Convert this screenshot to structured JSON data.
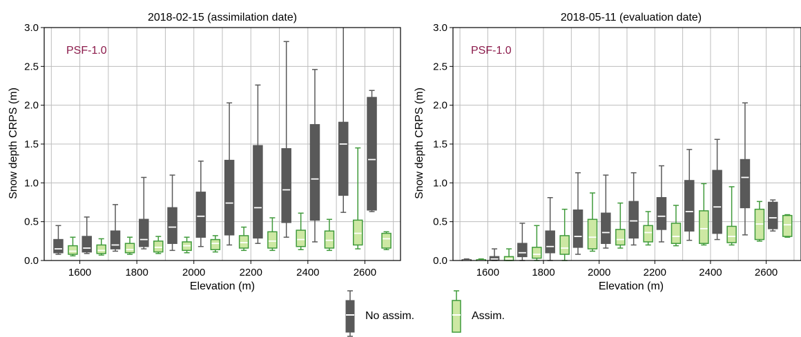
{
  "colors": {
    "no_assim_fill": "#595959",
    "no_assim_edge": "#595959",
    "no_assim_median": "#ffffff",
    "assim_fill": "#cde8a3",
    "assim_edge": "#3f9a3a",
    "assim_median": "#ffffff",
    "annotation": "#8b1a4a",
    "grid": "#bdbdbd",
    "axis": "#000000"
  },
  "legend": {
    "no_assim_label": "No assim.",
    "assim_label": "Assim."
  },
  "chart_data": [
    {
      "type": "box",
      "title": "2018-02-15 (assimilation date)",
      "annotation": "PSF-1.0",
      "xlabel": "Elevation (m)",
      "ylabel": "Snow depth CRPS (m)",
      "ylim": [
        0,
        3.0
      ],
      "xlim": [
        1475,
        2725
      ],
      "xticks": [
        1600,
        1800,
        2000,
        2200,
        2400,
        2600
      ],
      "xtick_labels": [
        "1600",
        "1800",
        "2000",
        "2200",
        "2400",
        "2600"
      ],
      "yticks": [
        0.0,
        0.5,
        1.0,
        1.5,
        2.0,
        2.5,
        3.0
      ],
      "ytick_labels": [
        "0.0",
        "0.5",
        "1.0",
        "1.5",
        "2.0",
        "2.5",
        "3.0"
      ],
      "grid": true,
      "categories": [
        1550,
        1650,
        1750,
        1850,
        1950,
        2050,
        2150,
        2250,
        2350,
        2450,
        2550,
        2650
      ],
      "series": [
        {
          "name": "No assim.",
          "boxes": [
            {
              "whislo": 0.08,
              "q1": 0.1,
              "med": 0.15,
              "q3": 0.27,
              "whishi": 0.45
            },
            {
              "whislo": 0.09,
              "q1": 0.11,
              "med": 0.16,
              "q3": 0.31,
              "whishi": 0.56
            },
            {
              "whislo": 0.12,
              "q1": 0.15,
              "med": 0.2,
              "q3": 0.38,
              "whishi": 0.72
            },
            {
              "whislo": 0.15,
              "q1": 0.18,
              "med": 0.27,
              "q3": 0.53,
              "whishi": 1.07
            },
            {
              "whislo": 0.13,
              "q1": 0.22,
              "med": 0.43,
              "q3": 0.68,
              "whishi": 1.1
            },
            {
              "whislo": 0.18,
              "q1": 0.3,
              "med": 0.57,
              "q3": 0.88,
              "whishi": 1.28
            },
            {
              "whislo": 0.2,
              "q1": 0.33,
              "med": 0.74,
              "q3": 1.29,
              "whishi": 2.03
            },
            {
              "whislo": 0.22,
              "q1": 0.29,
              "med": 0.68,
              "q3": 1.48,
              "whishi": 2.26
            },
            {
              "whislo": 0.3,
              "q1": 0.49,
              "med": 0.91,
              "q3": 1.44,
              "whishi": 2.82
            },
            {
              "whislo": 0.24,
              "q1": 0.52,
              "med": 1.05,
              "q3": 1.75,
              "whishi": 2.46
            },
            {
              "whislo": 0.62,
              "q1": 0.84,
              "med": 1.5,
              "q3": 1.78,
              "whishi": 3.05
            },
            {
              "whislo": 0.63,
              "q1": 0.65,
              "med": 1.3,
              "q3": 2.1,
              "whishi": 2.19
            }
          ]
        },
        {
          "name": "Assim.",
          "boxes": [
            {
              "whislo": 0.06,
              "q1": 0.08,
              "med": 0.12,
              "q3": 0.19,
              "whishi": 0.3
            },
            {
              "whislo": 0.07,
              "q1": 0.09,
              "med": 0.13,
              "q3": 0.2,
              "whishi": 0.28
            },
            {
              "whislo": 0.08,
              "q1": 0.1,
              "med": 0.14,
              "q3": 0.22,
              "whishi": 0.3
            },
            {
              "whislo": 0.09,
              "q1": 0.11,
              "med": 0.17,
              "q3": 0.25,
              "whishi": 0.31
            },
            {
              "whislo": 0.1,
              "q1": 0.13,
              "med": 0.19,
              "q3": 0.24,
              "whishi": 0.3
            },
            {
              "whislo": 0.11,
              "q1": 0.14,
              "med": 0.22,
              "q3": 0.27,
              "whishi": 0.32
            },
            {
              "whislo": 0.13,
              "q1": 0.16,
              "med": 0.23,
              "q3": 0.32,
              "whishi": 0.43
            },
            {
              "whislo": 0.13,
              "q1": 0.16,
              "med": 0.25,
              "q3": 0.37,
              "whishi": 0.55
            },
            {
              "whislo": 0.14,
              "q1": 0.18,
              "med": 0.27,
              "q3": 0.39,
              "whishi": 0.61
            },
            {
              "whislo": 0.13,
              "q1": 0.16,
              "med": 0.26,
              "q3": 0.38,
              "whishi": 0.53
            },
            {
              "whislo": 0.15,
              "q1": 0.2,
              "med": 0.35,
              "q3": 0.52,
              "whishi": 1.45
            },
            {
              "whislo": 0.14,
              "q1": 0.16,
              "med": 0.28,
              "q3": 0.35,
              "whishi": 0.37
            }
          ]
        }
      ]
    },
    {
      "type": "box",
      "title": "2018-05-11 (evaluation date)",
      "annotation": "PSF-1.0",
      "xlabel": "Elevation (m)",
      "ylabel": "Snow depth CRPS (m)",
      "ylim": [
        0,
        3.0
      ],
      "xlim": [
        1475,
        2725
      ],
      "xticks": [
        1600,
        1800,
        2000,
        2200,
        2400,
        2600
      ],
      "xtick_labels": [
        "1600",
        "1800",
        "2000",
        "2200",
        "2400",
        "2600"
      ],
      "yticks": [
        0.0,
        0.5,
        1.0,
        1.5,
        2.0,
        2.5,
        3.0
      ],
      "ytick_labels": [
        "0.0",
        "0.5",
        "1.0",
        "1.5",
        "2.0",
        "2.5",
        "3.0"
      ],
      "grid": true,
      "categories": [
        1550,
        1650,
        1750,
        1850,
        1950,
        2050,
        2150,
        2250,
        2350,
        2450,
        2550,
        2650
      ],
      "series": [
        {
          "name": "No assim.",
          "boxes": [
            {
              "whislo": 0.0,
              "q1": 0.0,
              "med": 0.0,
              "q3": 0.01,
              "whishi": 0.02
            },
            {
              "whislo": 0.0,
              "q1": 0.01,
              "med": 0.02,
              "q3": 0.05,
              "whishi": 0.15
            },
            {
              "whislo": 0.0,
              "q1": 0.05,
              "med": 0.1,
              "q3": 0.22,
              "whishi": 0.48
            },
            {
              "whislo": 0.0,
              "q1": 0.1,
              "med": 0.18,
              "q3": 0.38,
              "whishi": 0.81
            },
            {
              "whislo": 0.08,
              "q1": 0.17,
              "med": 0.31,
              "q3": 0.65,
              "whishi": 1.13
            },
            {
              "whislo": 0.16,
              "q1": 0.22,
              "med": 0.36,
              "q3": 0.61,
              "whishi": 1.1
            },
            {
              "whislo": 0.2,
              "q1": 0.29,
              "med": 0.51,
              "q3": 0.76,
              "whishi": 1.13
            },
            {
              "whislo": 0.24,
              "q1": 0.4,
              "med": 0.57,
              "q3": 0.81,
              "whishi": 1.22
            },
            {
              "whislo": 0.26,
              "q1": 0.38,
              "med": 0.63,
              "q3": 1.03,
              "whishi": 1.43
            },
            {
              "whislo": 0.27,
              "q1": 0.35,
              "med": 0.69,
              "q3": 1.16,
              "whishi": 1.56
            },
            {
              "whislo": 0.33,
              "q1": 0.68,
              "med": 1.07,
              "q3": 1.3,
              "whishi": 2.03
            },
            {
              "whislo": 0.38,
              "q1": 0.41,
              "med": 0.55,
              "q3": 0.75,
              "whishi": 0.78
            }
          ]
        },
        {
          "name": "Assim.",
          "boxes": [
            {
              "whislo": 0.0,
              "q1": 0.0,
              "med": 0.0,
              "q3": 0.01,
              "whishi": 0.02
            },
            {
              "whislo": 0.0,
              "q1": 0.0,
              "med": 0.02,
              "q3": 0.05,
              "whishi": 0.15
            },
            {
              "whislo": 0.0,
              "q1": 0.03,
              "med": 0.08,
              "q3": 0.17,
              "whishi": 0.45
            },
            {
              "whislo": 0.0,
              "q1": 0.08,
              "med": 0.16,
              "q3": 0.32,
              "whishi": 0.66
            },
            {
              "whislo": 0.12,
              "q1": 0.15,
              "med": 0.3,
              "q3": 0.53,
              "whishi": 0.87
            },
            {
              "whislo": 0.16,
              "q1": 0.2,
              "med": 0.27,
              "q3": 0.4,
              "whishi": 0.74
            },
            {
              "whislo": 0.2,
              "q1": 0.24,
              "med": 0.36,
              "q3": 0.45,
              "whishi": 0.63
            },
            {
              "whislo": 0.19,
              "q1": 0.22,
              "med": 0.31,
              "q3": 0.48,
              "whishi": 0.71
            },
            {
              "whislo": 0.2,
              "q1": 0.22,
              "med": 0.41,
              "q3": 0.64,
              "whishi": 0.99
            },
            {
              "whislo": 0.2,
              "q1": 0.23,
              "med": 0.31,
              "q3": 0.44,
              "whishi": 0.95
            },
            {
              "whislo": 0.25,
              "q1": 0.27,
              "med": 0.47,
              "q3": 0.66,
              "whishi": 0.76
            },
            {
              "whislo": 0.3,
              "q1": 0.31,
              "med": 0.46,
              "q3": 0.58,
              "whishi": 0.59
            }
          ]
        }
      ]
    }
  ]
}
